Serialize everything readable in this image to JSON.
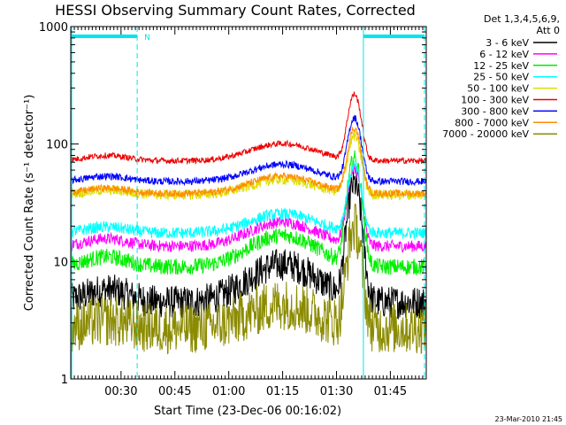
{
  "chart_data": {
    "type": "line",
    "title": "HESSI Observing Summary Count Rates, Corrected",
    "xlabel": "Start Time (23-Dec-06 00:16:02)",
    "ylabel": "Corrected Count Rate (s⁻¹ detector⁻¹)",
    "yscale": "log",
    "ylim": [
      1,
      1000
    ],
    "xlim_minutes": [
      0,
      99
    ],
    "x_ticks": [
      {
        "m": 14,
        "label": "00:30"
      },
      {
        "m": 29,
        "label": "00:45"
      },
      {
        "m": 44,
        "label": "01:00"
      },
      {
        "m": 59,
        "label": "01:15"
      },
      {
        "m": 74,
        "label": "01:30"
      },
      {
        "m": 89,
        "label": "01:45"
      }
    ],
    "y_ticks": [
      {
        "v": 1000,
        "label": "1000"
      },
      {
        "v": 100,
        "label": "100"
      },
      {
        "v": 10,
        "label": "10"
      },
      {
        "v": 1,
        "label": "1"
      }
    ],
    "legend_header": [
      "Det 1,3,4,5,6,9,",
      "Att 0"
    ],
    "legend_position": "right",
    "flag_label": "N",
    "markers_minutes": [
      0,
      18.5,
      81.5,
      98.5
    ],
    "series": [
      {
        "name": "3 - 6 keV",
        "color": "#000000",
        "base": 4.5,
        "hump": 2.1,
        "peak": 9.5,
        "noise": 0.14
      },
      {
        "name": "6 - 12 keV",
        "color": "#ff00ff",
        "base": 13.5,
        "hump": 1.6,
        "peak": 4.5,
        "noise": 0.05
      },
      {
        "name": "12 - 25 keV",
        "color": "#00ee00",
        "base": 9,
        "hump": 1.85,
        "peak": 8,
        "noise": 0.07
      },
      {
        "name": "25 - 50 keV",
        "color": "#00ffff",
        "base": 17.5,
        "hump": 1.45,
        "peak": 3.6,
        "noise": 0.05
      },
      {
        "name": "50 - 100 keV",
        "color": "#dddd00",
        "base": 37,
        "hump": 1.35,
        "peak": 3.1,
        "noise": 0.045
      },
      {
        "name": "100 - 300 keV",
        "color": "#ee0000",
        "base": 72,
        "hump": 1.4,
        "peak": 3.6,
        "noise": 0.025
      },
      {
        "name": "300 - 800 keV",
        "color": "#0000ff",
        "base": 48,
        "hump": 1.4,
        "peak": 3.4,
        "noise": 0.03
      },
      {
        "name": "800 - 7000 keV",
        "color": "#ff8c00",
        "base": 38,
        "hump": 1.4,
        "peak": 3.5,
        "noise": 0.03
      },
      {
        "name": "7000 - 20000 keV",
        "color": "#8b8b00",
        "base": 2.7,
        "hump": 1.6,
        "peak": 7,
        "noise": 0.22
      }
    ]
  },
  "footer_timestamp": "23-Mar-2010 21:45"
}
